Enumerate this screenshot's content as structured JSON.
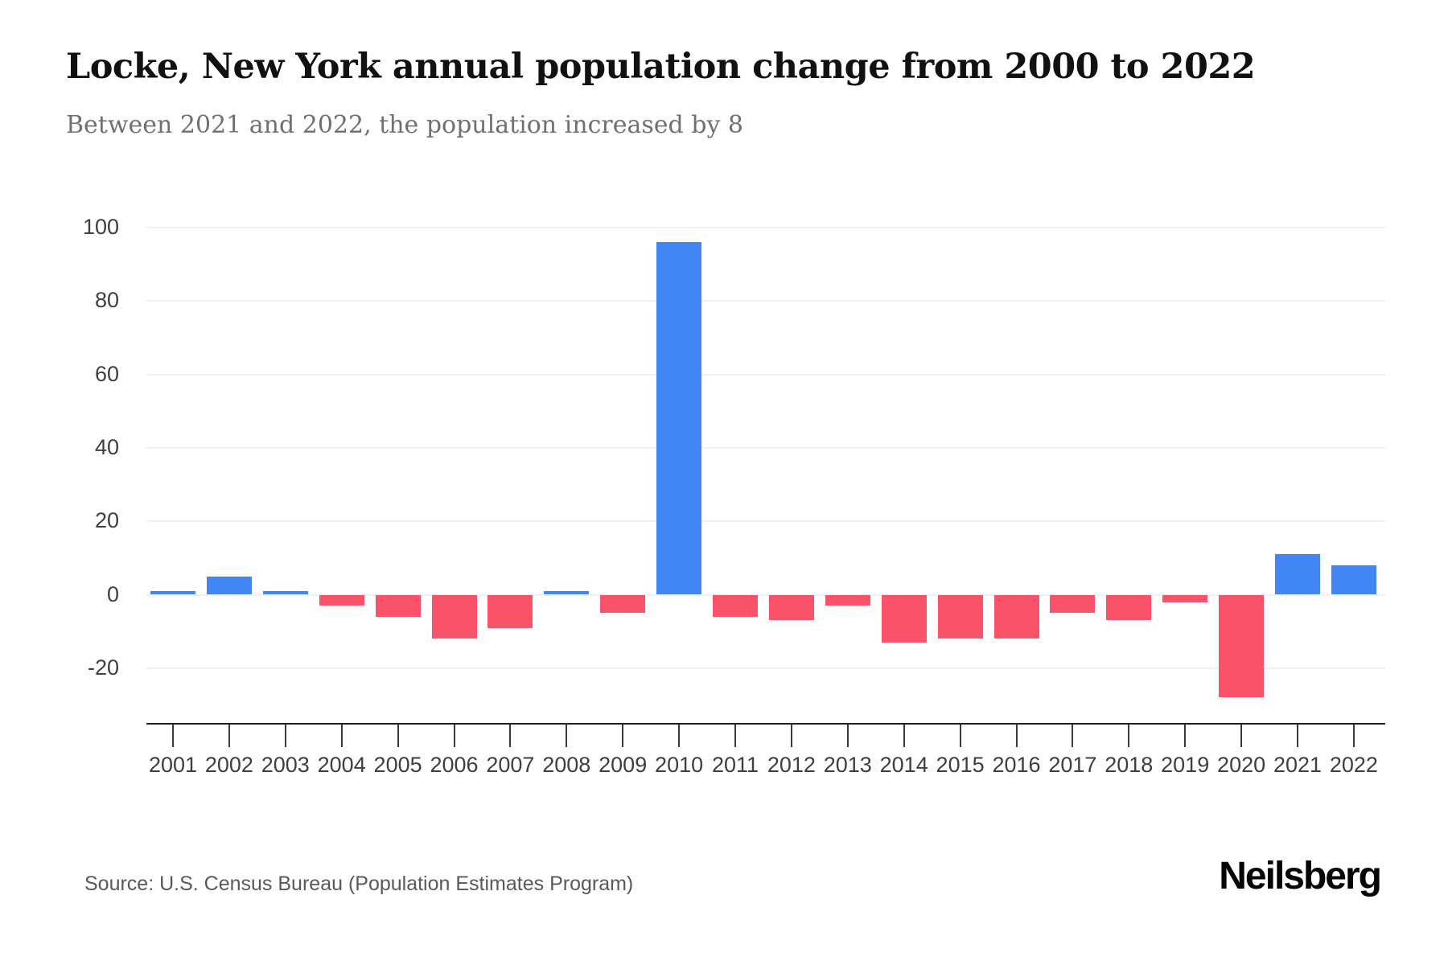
{
  "page": {
    "title": "Locke, New York annual population change from 2000 to 2022",
    "subtitle": "Between 2021 and 2022, the population increased by 8",
    "source": "Source: U.S. Census Bureau (Population Estimates Program)",
    "brand": "Neilsberg"
  },
  "colors": {
    "positive": "#4285F4",
    "negative": "#FA5268",
    "grid": "#F1F1F1",
    "axis": "#1F1F1F",
    "tick_label": "#3C4043",
    "subtitle_text": "#707070",
    "source_text": "#58595B"
  },
  "chart_data": {
    "type": "bar",
    "title": "Locke, New York annual population change from 2000 to 2022",
    "subtitle": "Between 2021 and 2022, the population increased by 8",
    "xlabel": "",
    "ylabel": "",
    "categories": [
      "2001",
      "2002",
      "2003",
      "2004",
      "2005",
      "2006",
      "2007",
      "2008",
      "2009",
      "2010",
      "2011",
      "2012",
      "2013",
      "2014",
      "2015",
      "2016",
      "2017",
      "2018",
      "2019",
      "2020",
      "2021",
      "2022"
    ],
    "values": [
      1,
      5,
      1,
      -3,
      -6,
      -12,
      -9,
      1,
      -5,
      96,
      -6,
      -7,
      -3,
      -13,
      -12,
      -12,
      -5,
      -7,
      -2,
      -28,
      11,
      8
    ],
    "yticks": [
      100,
      80,
      60,
      40,
      20,
      0,
      -20
    ],
    "ylim": [
      -35,
      108
    ],
    "grid": true,
    "legend": false,
    "series_colors_rule": "positive bars blue, negative bars red"
  }
}
